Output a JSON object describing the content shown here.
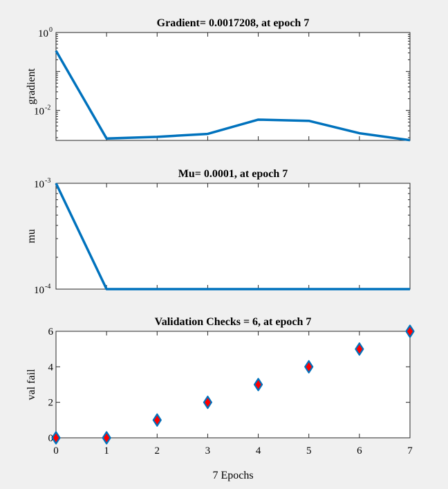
{
  "chart_data": [
    {
      "type": "line",
      "title": "Gradient= 0.0017208, at epoch 7",
      "ylabel": "gradient",
      "xlabel": "",
      "yscale": "log",
      "ylim": [
        0.0017,
        1
      ],
      "xlim": [
        0,
        7
      ],
      "ytick_labels": [
        {
          "base": "10",
          "exp": "0"
        },
        {
          "base": "10",
          "exp": "-2"
        }
      ],
      "line_color": "#0072bd",
      "grid": false,
      "x": [
        0,
        1,
        2,
        3,
        4,
        5,
        6,
        7
      ],
      "values": [
        0.34,
        0.0019,
        0.0021,
        0.0025,
        0.0058,
        0.0054,
        0.0026,
        0.0017208
      ]
    },
    {
      "type": "line",
      "title": "Mu= 0.0001, at epoch 7",
      "ylabel": "mu",
      "xlabel": "",
      "yscale": "log",
      "ylim": [
        0.0001,
        0.001
      ],
      "xlim": [
        0,
        7
      ],
      "ytick_labels": [
        {
          "base": "10",
          "exp": "-3"
        },
        {
          "base": "10",
          "exp": "-4"
        }
      ],
      "line_color": "#0072bd",
      "grid": false,
      "x": [
        0,
        1,
        2,
        3,
        4,
        5,
        6,
        7
      ],
      "values": [
        0.001,
        0.0001,
        0.0001,
        0.0001,
        0.0001,
        0.0001,
        0.0001,
        0.0001
      ]
    },
    {
      "type": "scatter",
      "title": "Validation Checks = 6, at epoch 7",
      "ylabel": "val fail",
      "xlabel": "7 Epochs",
      "ylim": [
        0,
        6
      ],
      "xlim": [
        0,
        7
      ],
      "yticks": [
        0,
        2,
        4,
        6
      ],
      "xticks": [
        0,
        1,
        2,
        3,
        4,
        5,
        6,
        7
      ],
      "marker": "diamond",
      "marker_edge": "#0072bd",
      "marker_face": "#ff0000",
      "grid": false,
      "x": [
        0,
        1,
        2,
        3,
        4,
        5,
        6,
        7
      ],
      "values": [
        0,
        0,
        1,
        2,
        3,
        4,
        5,
        6
      ]
    }
  ]
}
